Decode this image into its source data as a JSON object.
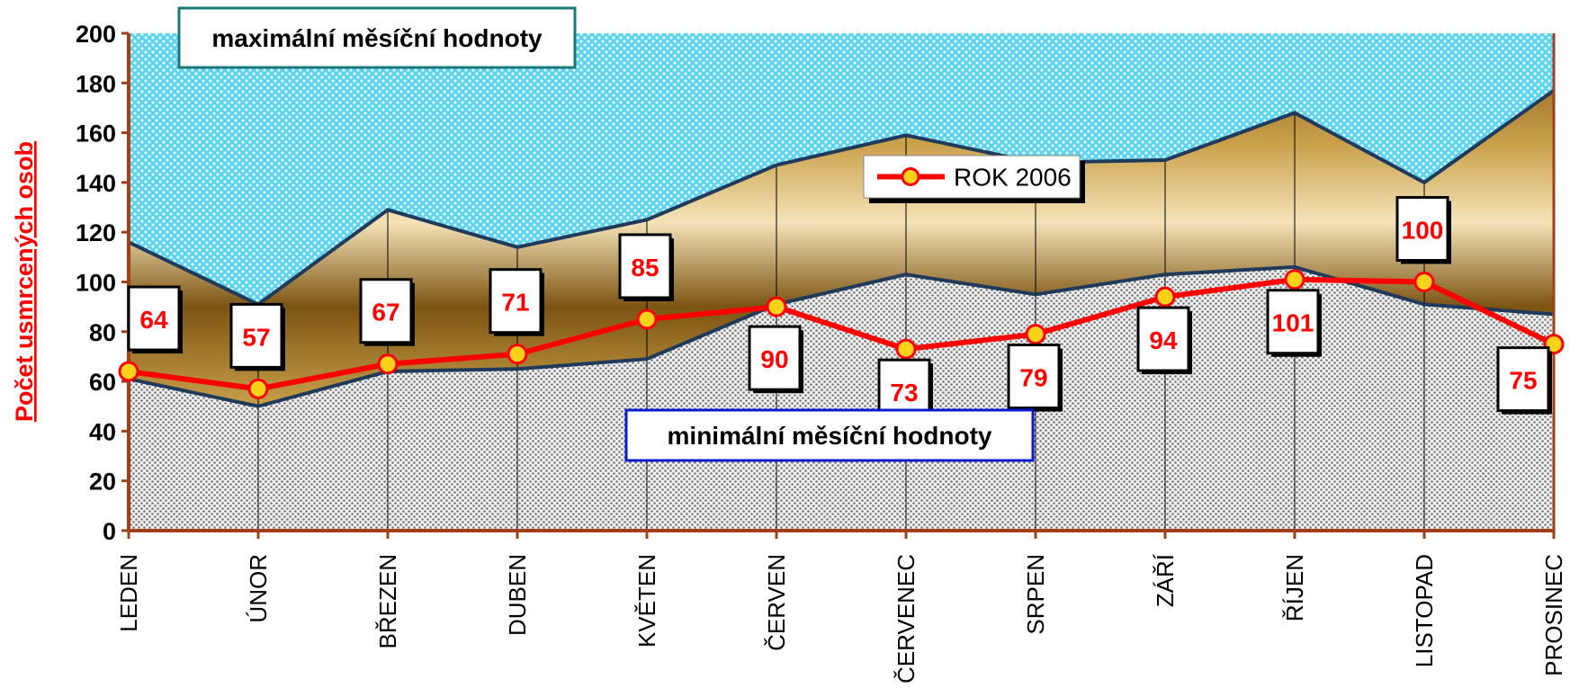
{
  "chart_data": {
    "type": "area-line",
    "y_label": "Počet usmrcených osob",
    "categories": [
      "LEDEN",
      "ÚNOR",
      "BŘEZEN",
      "DUBEN",
      "KVĚTEN",
      "ČERVEN",
      "ČERVENEC",
      "SRPEN",
      "ZÁŘÍ",
      "ŘÍJEN",
      "LISTOPAD",
      "PROSINEC"
    ],
    "series": [
      {
        "name": "maximální měsíční hodnoty",
        "kind": "area",
        "color": "#c9a14a",
        "values": [
          116,
          91,
          129,
          114,
          125,
          147,
          159,
          148,
          149,
          168,
          140,
          177
        ]
      },
      {
        "name": "minimální měsíční hodnoty",
        "kind": "area",
        "color": "#b8b8b8",
        "values": [
          61,
          50,
          64,
          65,
          69,
          91,
          103,
          95,
          103,
          106,
          91,
          87
        ]
      },
      {
        "name": "ROK 2006",
        "kind": "line",
        "color": "#ff0000",
        "values": [
          64,
          57,
          67,
          71,
          85,
          90,
          73,
          79,
          94,
          101,
          100,
          75
        ]
      }
    ],
    "ylim": [
      0,
      200
    ],
    "yticks": [
      0,
      20,
      40,
      60,
      80,
      100,
      120,
      140,
      160,
      180,
      200
    ]
  }
}
